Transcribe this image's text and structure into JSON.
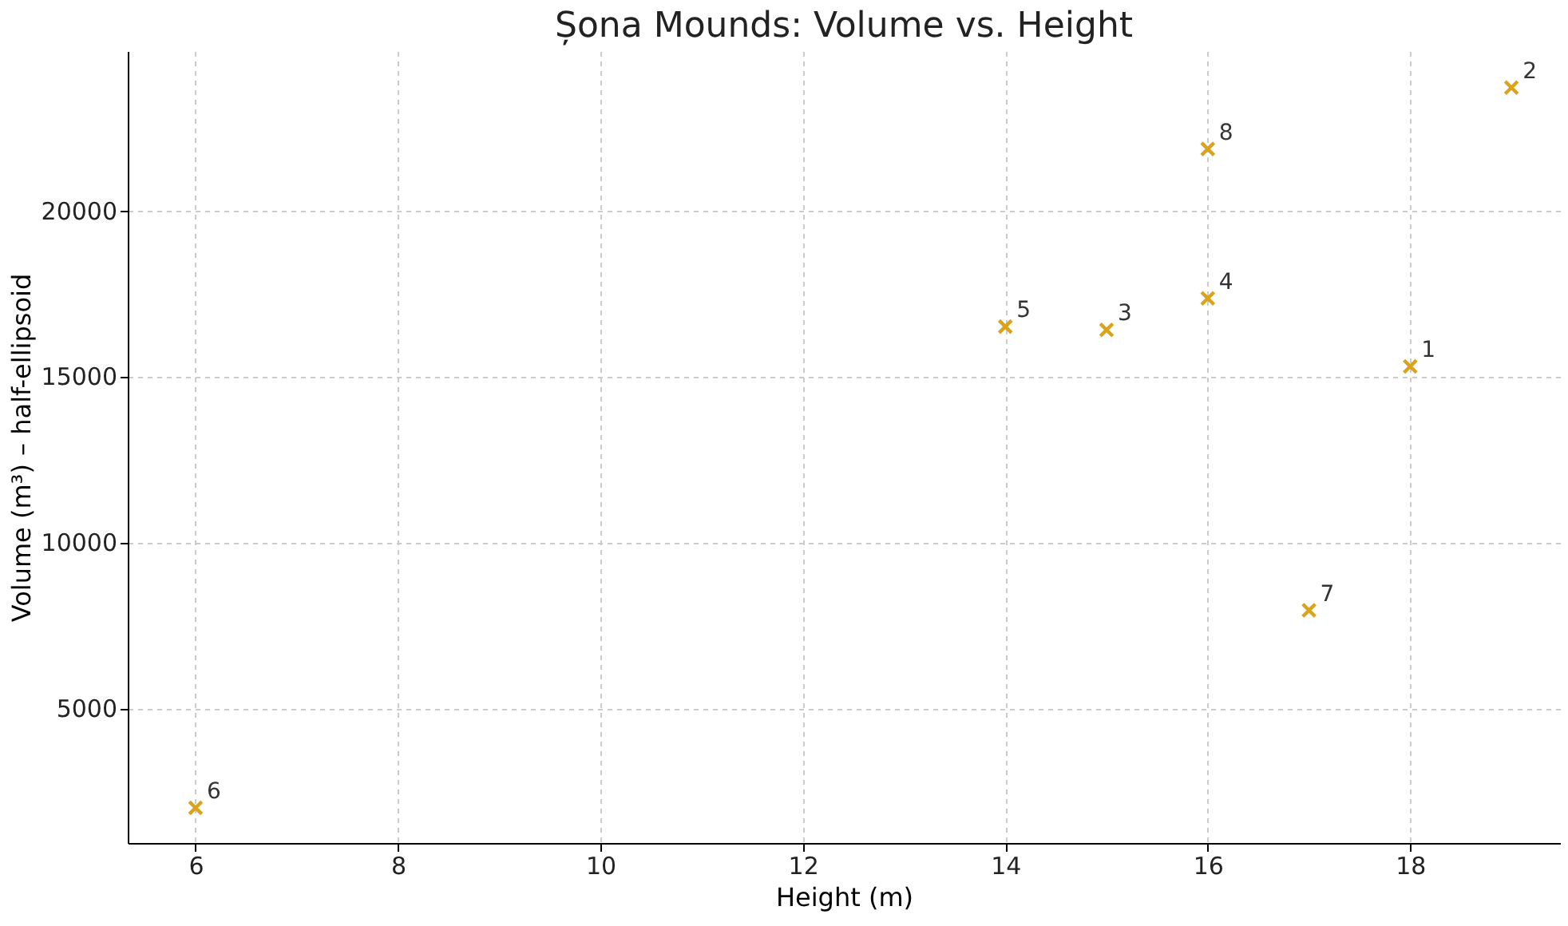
{
  "chart_data": {
    "type": "scatter",
    "title": "Șona Mounds: Volume vs. Height",
    "xlabel": "Height (m)",
    "ylabel": "Volume (m³) – half-ellipsoid",
    "x": [
      18,
      19,
      15,
      16,
      14,
      6,
      17,
      16
    ],
    "series": [
      {
        "color": "#dba21c",
        "values": [
          15300,
          23700,
          16400,
          17350,
          16500,
          2000,
          7950,
          21850
        ]
      }
    ],
    "annotations": [
      {
        "text": "1",
        "x": 18,
        "y": 15300
      },
      {
        "text": "2",
        "x": 19,
        "y": 23700
      },
      {
        "text": "3",
        "x": 15,
        "y": 16400
      },
      {
        "text": "4",
        "x": 16,
        "y": 17350
      },
      {
        "text": "5",
        "x": 14,
        "y": 16500
      },
      {
        "text": "6",
        "x": 6,
        "y": 2000
      },
      {
        "text": "7",
        "x": 17,
        "y": 7950
      },
      {
        "text": "8",
        "x": 16,
        "y": 21850
      }
    ],
    "xlim": [
      5.33,
      19.48
    ],
    "xticks": [
      6,
      8,
      10,
      12,
      14,
      16,
      18
    ],
    "ylim": [
      940,
      24800
    ],
    "yticks": [
      5000,
      10000,
      15000,
      20000
    ],
    "grid": true,
    "marker": "cross"
  }
}
